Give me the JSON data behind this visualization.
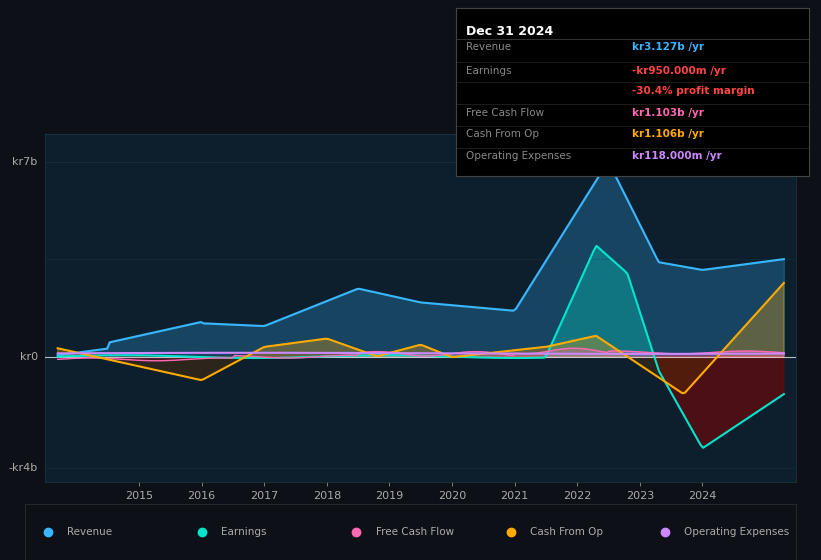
{
  "bg_color": "#0d1117",
  "plot_bg_color": "#0d1f2d",
  "grid_color": "#1e3a4a",
  "title_box_bg": "#000000",
  "title_box_border": "#333333",
  "title": "Dec 31 2024",
  "info_rows": [
    {
      "label": "Revenue",
      "value": "kr3.127b /yr",
      "color": "#38b6ff"
    },
    {
      "label": "Earnings",
      "value": "-kr950.000m /yr",
      "color": "#ff4444"
    },
    {
      "label": "",
      "value": "-30.4% profit margin",
      "color": "#ff4444"
    },
    {
      "label": "Free Cash Flow",
      "value": "kr1.103b /yr",
      "color": "#ff69b4"
    },
    {
      "label": "Cash From Op",
      "value": "kr1.106b /yr",
      "color": "#ffaa00"
    },
    {
      "label": "Operating Expenses",
      "value": "kr118.000m /yr",
      "color": "#cc88ff"
    }
  ],
  "y_label_top": "kr7b",
  "y_label_zero": "kr0",
  "y_label_bottom": "-kr4b",
  "x_ticks": [
    "2015",
    "2016",
    "2017",
    "2018",
    "2019",
    "2020",
    "2021",
    "2022",
    "2023",
    "2024"
  ],
  "legend": [
    {
      "label": "Revenue",
      "color": "#38b6ff",
      "style": "circle"
    },
    {
      "label": "Earnings",
      "color": "#00e5cc",
      "style": "circle"
    },
    {
      "label": "Free Cash Flow",
      "color": "#ff69b4",
      "style": "circle"
    },
    {
      "label": "Cash From Op",
      "color": "#ffaa00",
      "style": "circle"
    },
    {
      "label": "Operating Expenses",
      "color": "#cc88ff",
      "style": "circle"
    }
  ],
  "revenue_color": "#38b6ff",
  "earnings_color": "#00e5cc",
  "fcf_color": "#ff69b4",
  "cashfromop_color": "#ffaa00",
  "opex_color": "#cc88ff",
  "ylim": [
    -4.5,
    8.0
  ],
  "xlim": [
    2013.5,
    2025.5
  ]
}
